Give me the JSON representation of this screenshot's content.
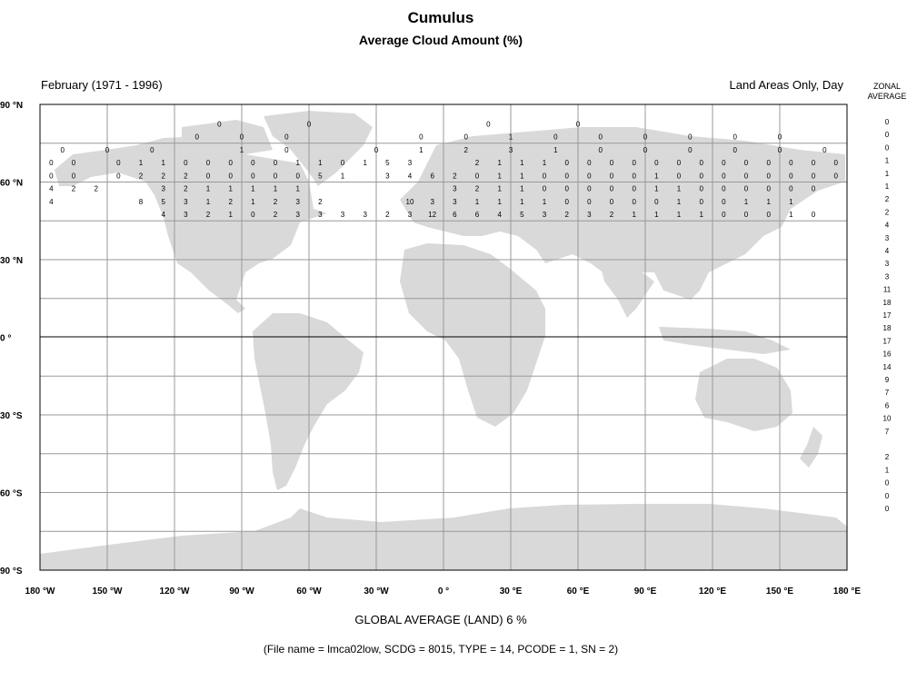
{
  "title": "Cumulus",
  "subtitle": "Average Cloud Amount (%)",
  "period": "February (1971 - 1996)",
  "coverage": "Land Areas Only, Day",
  "zonal_header": [
    "ZONAL",
    "AVERAGE"
  ],
  "lat_labels": [
    "90 °N",
    "60 °N",
    "30 °N",
    "0 °",
    "30 °S",
    "60 °S",
    "90 °S"
  ],
  "lon_labels": [
    "180 °W",
    "150 °W",
    "120 °W",
    "90 °W",
    "60 °W",
    "30 °W",
    "0 °",
    "30 °E",
    "60 °E",
    "90 °E",
    "120 °E",
    "150 °E",
    "180 °E"
  ],
  "zonal_average": [
    "0",
    "0",
    "0",
    "1",
    "1",
    "1",
    "2",
    "2",
    "4",
    "3",
    "4",
    "3",
    "3",
    "11",
    "18",
    "17",
    "18",
    "17",
    "16",
    "14",
    "9",
    "7",
    "6",
    "10",
    "7",
    "",
    "2",
    "1",
    "0",
    "0",
    "0"
  ],
  "grid_rows": [
    {
      "lat": 82.5,
      "cells": [
        [
          -100,
          "0"
        ],
        [
          -60,
          "0"
        ],
        [
          20,
          "0"
        ],
        [
          60,
          "0"
        ]
      ]
    },
    {
      "lat": 77.5,
      "cells": [
        [
          -110,
          "0"
        ],
        [
          -90,
          "0"
        ],
        [
          -70,
          "0"
        ],
        [
          -10,
          "0"
        ],
        [
          10,
          "0"
        ],
        [
          30,
          "1"
        ],
        [
          50,
          "0"
        ],
        [
          70,
          "0"
        ],
        [
          90,
          "0"
        ],
        [
          110,
          "0"
        ],
        [
          130,
          "0"
        ],
        [
          150,
          "0"
        ]
      ]
    },
    {
      "lat": 72.5,
      "cells": [
        [
          -170,
          "0"
        ],
        [
          -150,
          "0"
        ],
        [
          -130,
          "0"
        ],
        [
          -90,
          "1"
        ],
        [
          -70,
          "0"
        ],
        [
          -30,
          "0"
        ],
        [
          -10,
          "1"
        ],
        [
          10,
          "2"
        ],
        [
          30,
          "3"
        ],
        [
          50,
          "1"
        ],
        [
          70,
          "0"
        ],
        [
          90,
          "0"
        ],
        [
          110,
          "0"
        ],
        [
          130,
          "0"
        ],
        [
          150,
          "0"
        ],
        [
          170,
          "0"
        ]
      ]
    },
    {
      "lat": 67.5,
      "cells": [
        [
          -175,
          "0"
        ],
        [
          -165,
          "0"
        ],
        [
          -145,
          "0"
        ],
        [
          -135,
          "1"
        ],
        [
          -125,
          "1"
        ],
        [
          -115,
          "0"
        ],
        [
          -105,
          "0"
        ],
        [
          -95,
          "0"
        ],
        [
          -85,
          "0"
        ],
        [
          -75,
          "0"
        ],
        [
          -65,
          "1"
        ],
        [
          -55,
          "1"
        ],
        [
          -45,
          "0"
        ],
        [
          -35,
          "1"
        ],
        [
          -25,
          "5"
        ],
        [
          -15,
          "3"
        ],
        [
          15,
          "2"
        ],
        [
          25,
          "1"
        ],
        [
          35,
          "1"
        ],
        [
          45,
          "1"
        ],
        [
          55,
          "0"
        ],
        [
          65,
          "0"
        ],
        [
          75,
          "0"
        ],
        [
          85,
          "0"
        ],
        [
          95,
          "0"
        ],
        [
          105,
          "0"
        ],
        [
          115,
          "0"
        ],
        [
          125,
          "0"
        ],
        [
          135,
          "0"
        ],
        [
          145,
          "0"
        ],
        [
          155,
          "0"
        ],
        [
          165,
          "0"
        ],
        [
          175,
          "0"
        ]
      ]
    },
    {
      "lat": 62.5,
      "cells": [
        [
          -175,
          "0"
        ],
        [
          -165,
          "0"
        ],
        [
          -145,
          "0"
        ],
        [
          -135,
          "2"
        ],
        [
          -125,
          "2"
        ],
        [
          -115,
          "2"
        ],
        [
          -105,
          "0"
        ],
        [
          -95,
          "0"
        ],
        [
          -85,
          "0"
        ],
        [
          -75,
          "0"
        ],
        [
          -65,
          "0"
        ],
        [
          -55,
          "5"
        ],
        [
          -45,
          "1"
        ],
        [
          -25,
          "3"
        ],
        [
          -15,
          "4"
        ],
        [
          -5,
          "6"
        ],
        [
          5,
          "2"
        ],
        [
          15,
          "0"
        ],
        [
          25,
          "1"
        ],
        [
          35,
          "1"
        ],
        [
          45,
          "0"
        ],
        [
          55,
          "0"
        ],
        [
          65,
          "0"
        ],
        [
          75,
          "0"
        ],
        [
          85,
          "0"
        ],
        [
          95,
          "1"
        ],
        [
          105,
          "0"
        ],
        [
          115,
          "0"
        ],
        [
          125,
          "0"
        ],
        [
          135,
          "0"
        ],
        [
          145,
          "0"
        ],
        [
          155,
          "0"
        ],
        [
          165,
          "0"
        ],
        [
          175,
          "0"
        ]
      ]
    },
    {
      "lat": 57.5,
      "cells": [
        [
          -175,
          "4"
        ],
        [
          -165,
          "2"
        ],
        [
          -155,
          "2"
        ],
        [
          -125,
          "3"
        ],
        [
          -115,
          "2"
        ],
        [
          -105,
          "1"
        ],
        [
          -95,
          "1"
        ],
        [
          -85,
          "1"
        ],
        [
          -75,
          "1"
        ],
        [
          -65,
          "1"
        ],
        [
          5,
          "3"
        ],
        [
          15,
          "2"
        ],
        [
          25,
          "1"
        ],
        [
          35,
          "1"
        ],
        [
          45,
          "0"
        ],
        [
          55,
          "0"
        ],
        [
          65,
          "0"
        ],
        [
          75,
          "0"
        ],
        [
          85,
          "0"
        ],
        [
          95,
          "1"
        ],
        [
          105,
          "1"
        ],
        [
          115,
          "0"
        ],
        [
          125,
          "0"
        ],
        [
          135,
          "0"
        ],
        [
          145,
          "0"
        ],
        [
          155,
          "0"
        ],
        [
          165,
          "0"
        ]
      ]
    },
    {
      "lat": 52.5,
      "cells": [
        [
          -175,
          "4"
        ],
        [
          -135,
          "8"
        ],
        [
          -125,
          "5"
        ],
        [
          -115,
          "3"
        ],
        [
          -105,
          "1"
        ],
        [
          -95,
          "2"
        ],
        [
          -85,
          "1"
        ],
        [
          -75,
          "2"
        ],
        [
          -65,
          "3"
        ],
        [
          -55,
          "2"
        ],
        [
          -15,
          "10"
        ],
        [
          -5,
          "3"
        ],
        [
          5,
          "3"
        ],
        [
          15,
          "1"
        ],
        [
          25,
          "1"
        ],
        [
          35,
          "1"
        ],
        [
          45,
          "1"
        ],
        [
          55,
          "0"
        ],
        [
          65,
          "0"
        ],
        [
          75,
          "0"
        ],
        [
          85,
          "0"
        ],
        [
          95,
          "0"
        ],
        [
          105,
          "1"
        ],
        [
          115,
          "0"
        ],
        [
          125,
          "0"
        ],
        [
          135,
          "1"
        ],
        [
          145,
          "1"
        ],
        [
          155,
          "1"
        ]
      ]
    },
    {
      "lat": 47.5,
      "cells": [
        [
          -125,
          "4"
        ],
        [
          -115,
          "3"
        ],
        [
          -105,
          "2"
        ],
        [
          -95,
          "1"
        ],
        [
          -85,
          "0"
        ],
        [
          -75,
          "2"
        ],
        [
          -65,
          "3"
        ],
        [
          -55,
          "3"
        ],
        [
          -45,
          "3"
        ],
        [
          -35,
          "3"
        ],
        [
          -25,
          "2"
        ],
        [
          -15,
          "3"
        ],
        [
          -5,
          "12"
        ],
        [
          5,
          "6"
        ],
        [
          15,
          "6"
        ],
        [
          25,
          "4"
        ],
        [
          35,
          "5"
        ],
        [
          45,
          "3"
        ],
        [
          55,
          "2"
        ],
        [
          65,
          "3"
        ],
        [
          75,
          "2"
        ],
        [
          85,
          "1"
        ],
        [
          95,
          "1"
        ],
        [
          105,
          "1"
        ],
        [
          115,
          "1"
        ],
        [
          125,
          "0"
        ],
        [
          135,
          "0"
        ],
        [
          145,
          "0"
        ],
        [
          155,
          "1"
        ],
        [
          165,
          "0"
        ]
      ]
    }
  ],
  "global_average": "GLOBAL AVERAGE (LAND)   6 %",
  "file_info": "(File name = lmca02low, SCDG = 8015, TYPE = 14, PCODE = 1, SN = 2)",
  "colors": {
    "land": "#d9d9d9",
    "grid": "#999999",
    "frame": "#000000"
  }
}
